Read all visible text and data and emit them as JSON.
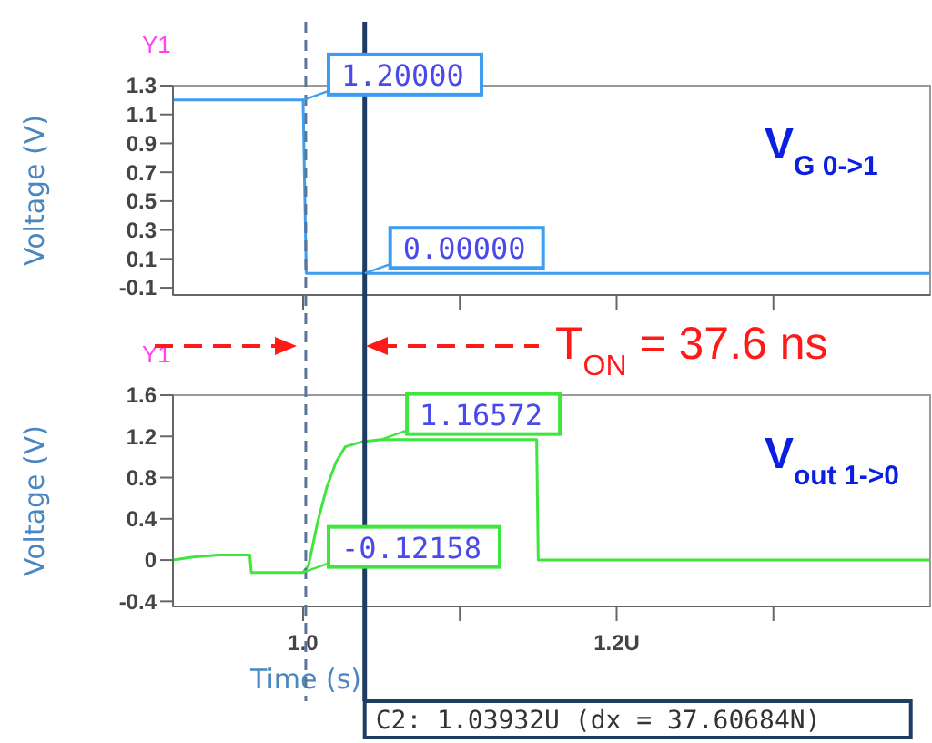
{
  "chart_data": [
    {
      "type": "line",
      "ylabel": "Voltage (V)",
      "annotations": [
        "Y1",
        "V$_{G 0->1}$",
        {
          "text": "1.20000",
          "x": 1.0,
          "y": 1.2
        },
        {
          "text": "0.00000",
          "x": 1.03932,
          "y": 0
        }
      ],
      "x": [
        0.917,
        1.0,
        1.002,
        1.4
      ],
      "series": [
        {
          "color": "#3d9df3",
          "values": [
            1.2,
            1.2,
            0,
            0
          ]
        }
      ],
      "xlim": [
        0.917,
        1.4
      ],
      "ylim": [
        -0.15,
        1.3
      ],
      "yticks": [
        -0.1,
        0.1,
        0.3,
        0.5,
        0.7,
        0.9,
        1.1,
        1.3
      ],
      "xticks": [
        {
          "value": 1.0,
          "label": null
        },
        {
          "value": 1.1,
          "label": null
        },
        {
          "value": 1.2,
          "label": null
        },
        {
          "value": 1.3,
          "label": null
        }
      ],
      "tick_labels": "y",
      "ref_lines": [
        {
          "axis": "x",
          "value": 1.00171,
          "line_style": "dashed",
          "color": "#5b7597"
        },
        {
          "axis": "x",
          "value": 1.03932,
          "color": "#1f3d63"
        }
      ]
    },
    {
      "type": "line",
      "xlabel": "Time (s)",
      "ylabel": "Voltage (V)",
      "annotations": [
        "Y1",
        "V$_{out 1->0}$",
        "T$_{ON}$ = 37.6 ns",
        {
          "text": "1.16572",
          "x": 1.05,
          "y": 1.17
        },
        {
          "text": "-0.12158",
          "x": 1.0,
          "y": -0.12
        }
      ],
      "x": [
        0.917,
        0.93,
        0.946,
        0.966,
        0.967,
        1.0,
        1.0035,
        1.009,
        1.015,
        1.021,
        1.027,
        1.038,
        1.05,
        1.06,
        1.149,
        1.15,
        1.4
      ],
      "series": [
        {
          "color": "#3ee63e",
          "values": [
            0,
            0.03,
            0.05,
            0.05,
            -0.12,
            -0.12,
            -0.05,
            0.35,
            0.7,
            0.95,
            1.1,
            1.15,
            1.17,
            1.17,
            1.17,
            0,
            0
          ]
        }
      ],
      "xlim": [
        0.917,
        1.4
      ],
      "ylim": [
        -0.45,
        1.6
      ],
      "yticks": [
        -0.4,
        0.0,
        0.4,
        0.8,
        1.2,
        1.6
      ],
      "xticks": [
        {
          "value": 1.0,
          "label": "1.0"
        },
        {
          "value": 1.1,
          "label": null
        },
        {
          "value": 1.2,
          "label": "1.2U"
        },
        {
          "value": 1.3,
          "label": null
        }
      ],
      "ref_lines": [
        {
          "axis": "x",
          "value": 1.00171,
          "line_style": "dashed",
          "color": "#5b7597"
        },
        {
          "axis": "x",
          "value": 1.03932,
          "color": "#1f3d63",
          "label": "C2: 1.03932U (dx = 37.60684N)"
        }
      ]
    }
  ]
}
